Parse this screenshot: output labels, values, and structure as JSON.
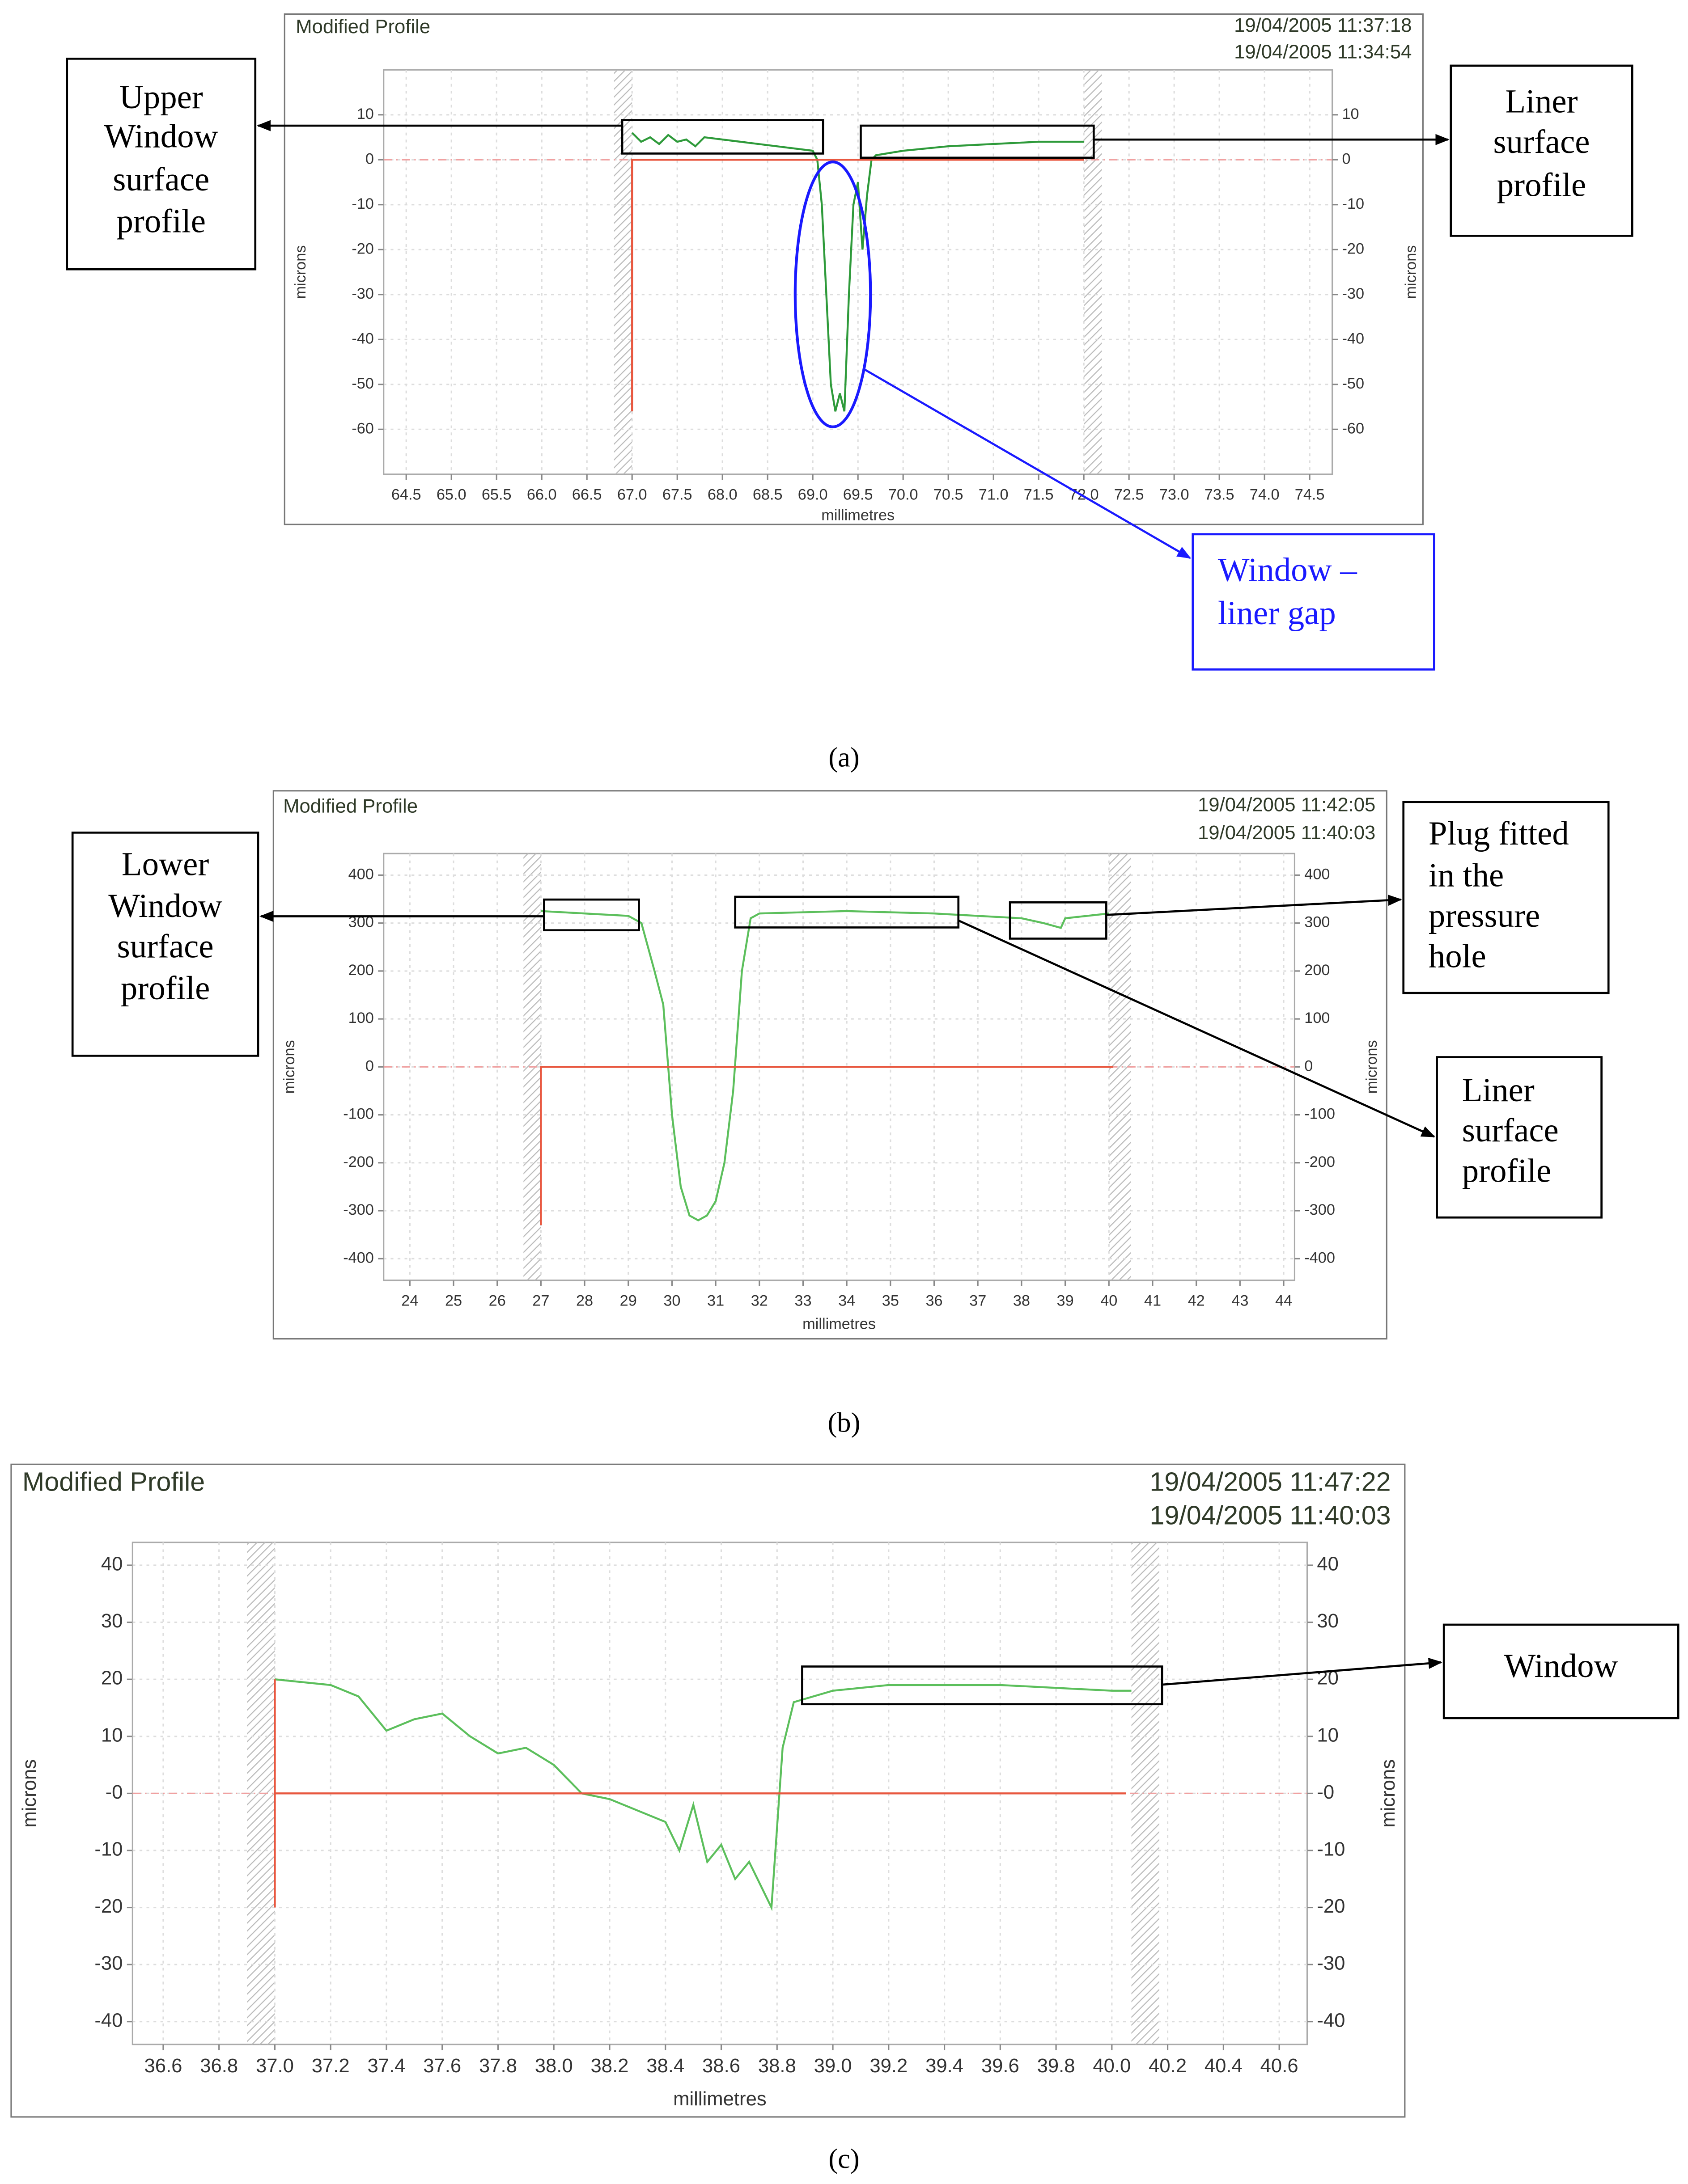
{
  "chart_data": [
    {
      "type": "line",
      "title": "Modified Profile",
      "timestamps": [
        "19/04/2005 11:37:18",
        "19/04/2005 11:34:54"
      ],
      "x_label": "millimetres",
      "y_label": "microns",
      "caption": "(a)",
      "xlim": [
        64.25,
        74.75
      ],
      "xticks": [
        64.5,
        {
          "value": 65,
          "label": "65.0"
        },
        65.5,
        {
          "value": 66,
          "label": "66.0"
        },
        66.5,
        {
          "value": 67,
          "label": "67.0"
        },
        67.5,
        {
          "value": 68,
          "label": "68.0"
        },
        68.5,
        {
          "value": 69,
          "label": "69.0"
        },
        69.5,
        {
          "value": 70,
          "label": "70.0"
        },
        70.5,
        {
          "value": 71,
          "label": "71.0"
        },
        71.5,
        {
          "value": 72,
          "label": "72.0"
        },
        72.5,
        {
          "value": 73,
          "label": "73.0"
        },
        73.5,
        {
          "value": 74,
          "label": "74.0"
        },
        74.5
      ],
      "ylim": [
        -70,
        20
      ],
      "yticks": [
        10,
        0,
        -10,
        -20,
        -30,
        -40,
        -50,
        -60
      ],
      "grid": true,
      "zero_line": true,
      "bands": [
        [
          66.8,
          67.0
        ],
        [
          72.0,
          72.2
        ]
      ],
      "series": [
        {
          "color": "#2e9a3a",
          "x": [
            67.0,
            67.1,
            67.2,
            67.3,
            67.4,
            67.5,
            67.6,
            67.7,
            67.8,
            68.0,
            68.2,
            68.4,
            68.6,
            68.8,
            69.0,
            69.05,
            69.1,
            69.15,
            69.2,
            69.25,
            69.3,
            69.35,
            69.4,
            69.45,
            69.5,
            69.55,
            69.6,
            69.65,
            69.7,
            70.0,
            70.5,
            71.0,
            71.5,
            72.0
          ],
          "values": [
            6,
            4,
            5,
            3.5,
            5.5,
            4,
            4.5,
            3,
            5,
            4.5,
            4,
            3.5,
            3,
            2.5,
            2,
            0,
            -10,
            -30,
            -50,
            -56,
            -52,
            -56,
            -30,
            -10,
            -5,
            -20,
            -8,
            0,
            1,
            2,
            3,
            3.5,
            4,
            4
          ]
        },
        {
          "color": "#e8573f",
          "x": [
            67.0,
            67.0,
            72.0
          ],
          "values": [
            -56,
            0,
            0
          ]
        }
      ],
      "annotations": [
        {
          "lines": [
            "Upper",
            "Window",
            "surface",
            "profile"
          ],
          "color": "#000000"
        },
        {
          "lines": [
            "Liner",
            "surface",
            "profile"
          ],
          "color": "#000000"
        },
        {
          "lines": [
            "Window –",
            "liner gap"
          ],
          "color": "#1a1aff"
        }
      ]
    },
    {
      "type": "line",
      "title": "Modified Profile",
      "timestamps": [
        "19/04/2005 11:42:05",
        "19/04/2005 11:40:03"
      ],
      "x_label": "millimetres",
      "y_label": "microns",
      "caption": "(b)",
      "xlim": [
        23.4,
        44.25
      ],
      "xticks": [
        24,
        25,
        26,
        27,
        28,
        29,
        30,
        31,
        32,
        33,
        34,
        35,
        36,
        37,
        38,
        39,
        40,
        41,
        42,
        43,
        44
      ],
      "ylim": [
        -445,
        445
      ],
      "yticks": [
        400,
        300,
        200,
        100,
        0,
        -100,
        -200,
        -300,
        -400
      ],
      "grid": true,
      "zero_line": true,
      "bands": [
        [
          26.6,
          27.0
        ],
        [
          40.0,
          40.5
        ]
      ],
      "series": [
        {
          "color": "#5cbf5c",
          "x": [
            27.0,
            28.0,
            29.0,
            29.3,
            29.6,
            29.8,
            30.0,
            30.2,
            30.4,
            30.6,
            30.8,
            31.0,
            31.2,
            31.4,
            31.6,
            31.8,
            32.0,
            34.0,
            36.0,
            37.0,
            38.0,
            38.5,
            38.9,
            39.0,
            39.5,
            40.0
          ],
          "values": [
            325,
            320,
            315,
            300,
            200,
            130,
            -100,
            -250,
            -310,
            -320,
            -310,
            -280,
            -200,
            -50,
            200,
            310,
            320,
            325,
            320,
            315,
            310,
            300,
            290,
            310,
            315,
            320
          ]
        },
        {
          "color": "#e8573f",
          "x": [
            27.0,
            27.0,
            40.1
          ],
          "values": [
            -330,
            0,
            0
          ]
        }
      ],
      "annotations": [
        {
          "lines": [
            "Lower",
            "Window",
            "surface",
            "profile"
          ],
          "color": "#000000"
        },
        {
          "lines": [
            "Plug fitted",
            "in the",
            "pressure",
            "hole"
          ],
          "color": "#000000"
        },
        {
          "lines": [
            "Liner",
            "surface",
            "profile"
          ],
          "color": "#000000"
        }
      ]
    },
    {
      "type": "line",
      "title": "Modified Profile",
      "timestamps": [
        "19/04/2005 11:47:22",
        "19/04/2005 11:40:03"
      ],
      "x_label": "millimetres",
      "y_label": "microns",
      "caption": "(c)",
      "xlim": [
        36.49,
        40.7
      ],
      "xticks": [
        36.6,
        36.8,
        {
          "value": 37,
          "label": "37.0"
        },
        37.2,
        37.4,
        37.6,
        37.8,
        {
          "value": 38,
          "label": "38.0"
        },
        38.2,
        38.4,
        38.6,
        38.8,
        {
          "value": 39,
          "label": "39.0"
        },
        39.2,
        39.4,
        39.6,
        39.8,
        {
          "value": 40,
          "label": "40.0"
        },
        40.2,
        40.4,
        40.6
      ],
      "ylim": [
        -44,
        44
      ],
      "yticks": [
        40,
        30,
        20,
        10,
        {
          "value": 0,
          "label": "-0"
        },
        -10,
        -20,
        -30,
        -40
      ],
      "grid": true,
      "zero_line": true,
      "bands": [
        [
          36.9,
          37.0
        ],
        [
          40.07,
          40.17
        ]
      ],
      "series": [
        {
          "color": "#5cbf5c",
          "x": [
            37.0,
            37.2,
            37.3,
            37.4,
            37.5,
            37.6,
            37.7,
            37.8,
            37.9,
            38.0,
            38.1,
            38.2,
            38.3,
            38.4,
            38.45,
            38.5,
            38.55,
            38.6,
            38.65,
            38.7,
            38.78,
            38.82,
            38.86,
            39.0,
            39.2,
            39.6,
            40.0,
            40.07
          ],
          "values": [
            20,
            19,
            17,
            11,
            13,
            14,
            10,
            7,
            8,
            5,
            0,
            -1,
            -3,
            -5,
            -10,
            -2,
            -12,
            -9,
            -15,
            -12,
            -20,
            8,
            16,
            18,
            19,
            19,
            18,
            18
          ]
        },
        {
          "color": "#e8573f",
          "x": [
            37.0,
            37.0,
            37.0,
            40.05
          ],
          "values": [
            20,
            -20,
            0,
            0
          ]
        }
      ],
      "annotations": [
        {
          "lines": [
            "Window"
          ],
          "color": "#000000"
        }
      ]
    }
  ]
}
